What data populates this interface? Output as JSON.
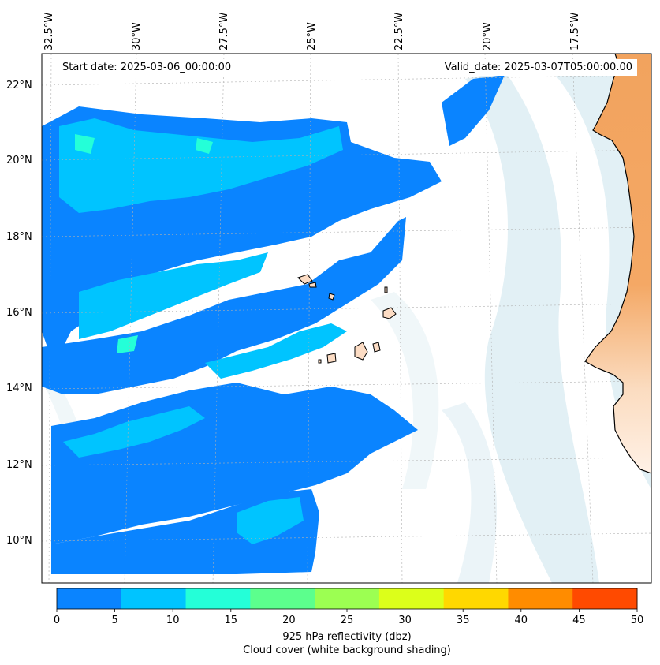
{
  "map": {
    "start_date": "Start date: 2025-03-06_00:00:00",
    "valid_date": "Valid_date: 2025-03-07T05:00:00.00",
    "lon_labels": [
      "32.5°W",
      "30°W",
      "27.5°W",
      "25°W",
      "22.5°W",
      "20°W",
      "17.5°W"
    ],
    "lat_labels": [
      "22°N",
      "20°N",
      "18°N",
      "16°N",
      "14°N",
      "12°N",
      "10°N"
    ],
    "colors": {
      "land": "#f2a35e",
      "ocean": "#ffffff",
      "cloud": "#cfe6ee",
      "coast": "#000000"
    }
  },
  "colorbar": {
    "ticks": [
      "0",
      "5",
      "10",
      "15",
      "20",
      "25",
      "30",
      "35",
      "40",
      "45",
      "50"
    ],
    "colors": [
      "#0a84ff",
      "#00c4ff",
      "#24ffd8",
      "#5cff8d",
      "#9cff52",
      "#dcff1a",
      "#ffd800",
      "#ff8c00",
      "#ff4a00"
    ],
    "label_line1": "925 hPa reflectivity (dbz)",
    "label_line2": "Cloud cover (white background shading)"
  }
}
